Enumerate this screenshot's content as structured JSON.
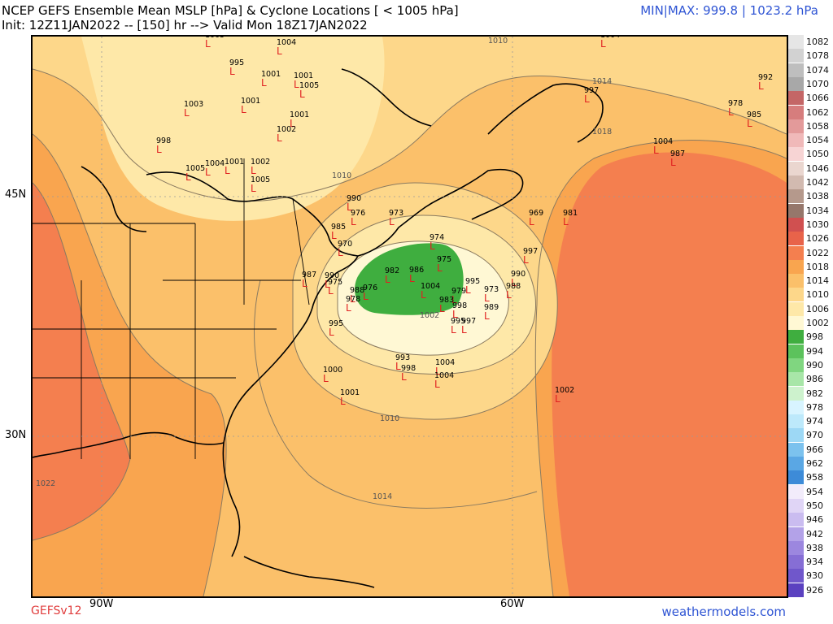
{
  "header": {
    "title_line1": "NCEP GEFS Ensemble Mean MSLP [hPa] & Cyclone Locations [ < 1005 hPa]",
    "title_line2": "Init: 12Z11JAN2022 -- [150] hr --> Valid Mon 18Z17JAN2022",
    "minmax": "MIN|MAX: 999.8 | 1023.2 hPa"
  },
  "footer": {
    "model": "GEFSv12",
    "site": "weathermodels.com"
  },
  "axes": {
    "lat_labels": [
      "45N",
      "30N"
    ],
    "lon_labels": [
      "90W",
      "60W"
    ]
  },
  "isobar_labels": [
    "1010",
    "1014",
    "1018",
    "1010",
    "1002",
    "1010",
    "1014",
    "1022"
  ],
  "colorbar": {
    "levels": [
      {
        "v": "1082",
        "c": "#e6e6e6"
      },
      {
        "v": "1078",
        "c": "#d2d2d2"
      },
      {
        "v": "1074",
        "c": "#bebebe"
      },
      {
        "v": "1070",
        "c": "#a8a8a8"
      },
      {
        "v": "1066",
        "c": "#c46666"
      },
      {
        "v": "1062",
        "c": "#d67d7d"
      },
      {
        "v": "1058",
        "c": "#e39a9a"
      },
      {
        "v": "1054",
        "c": "#f0b9b9"
      },
      {
        "v": "1050",
        "c": "#f7d4d4"
      },
      {
        "v": "1046",
        "c": "#ead6cf"
      },
      {
        "v": "1042",
        "c": "#d2bab0"
      },
      {
        "v": "1038",
        "c": "#b5998c"
      },
      {
        "v": "1034",
        "c": "#96776b"
      },
      {
        "v": "1030",
        "c": "#d05050"
      },
      {
        "v": "1026",
        "c": "#e8634a"
      },
      {
        "v": "1022",
        "c": "#f47f4f"
      },
      {
        "v": "1018",
        "c": "#f9a54f"
      },
      {
        "v": "1014",
        "c": "#fbc06a"
      },
      {
        "v": "1010",
        "c": "#fdd78a"
      },
      {
        "v": "1006",
        "c": "#fee8a8"
      },
      {
        "v": "1002",
        "c": "#fff8d4"
      },
      {
        "v": "998",
        "c": "#3fae3f"
      },
      {
        "v": "994",
        "c": "#5cc25c"
      },
      {
        "v": "990",
        "c": "#80d680"
      },
      {
        "v": "986",
        "c": "#a8e6a8"
      },
      {
        "v": "982",
        "c": "#cdf2cd"
      },
      {
        "v": "978",
        "c": "#d8f4ff"
      },
      {
        "v": "974",
        "c": "#bde9fb"
      },
      {
        "v": "970",
        "c": "#9dd8f5"
      },
      {
        "v": "966",
        "c": "#7cc2ee"
      },
      {
        "v": "962",
        "c": "#5aa7e4"
      },
      {
        "v": "958",
        "c": "#3d8bd8"
      },
      {
        "v": "954",
        "c": "#f2ecfb"
      },
      {
        "v": "950",
        "c": "#e0d5f6"
      },
      {
        "v": "946",
        "c": "#cabcf0"
      },
      {
        "v": "942",
        "c": "#b3a2e8"
      },
      {
        "v": "938",
        "c": "#9c87df"
      },
      {
        "v": "934",
        "c": "#866ed5"
      },
      {
        "v": "930",
        "c": "#7057cb"
      },
      {
        "v": "926",
        "c": "#5b41c0"
      }
    ]
  },
  "cyclones": [
    {
      "v": "1005"
    },
    {
      "v": "1004"
    },
    {
      "v": "995"
    },
    {
      "v": "1001"
    },
    {
      "v": "1001"
    },
    {
      "v": "1005"
    },
    {
      "v": "1003"
    },
    {
      "v": "1001"
    },
    {
      "v": "1001"
    },
    {
      "v": "1002"
    },
    {
      "v": "998"
    },
    {
      "v": "1004"
    },
    {
      "v": "1005"
    },
    {
      "v": "1001"
    },
    {
      "v": "1002"
    },
    {
      "v": "1005"
    },
    {
      "v": "1004"
    },
    {
      "v": "997"
    },
    {
      "v": "992"
    },
    {
      "v": "978"
    },
    {
      "v": "985"
    },
    {
      "v": "1004"
    },
    {
      "v": "987"
    },
    {
      "v": "990"
    },
    {
      "v": "976"
    },
    {
      "v": "973"
    },
    {
      "v": "969"
    },
    {
      "v": "981"
    },
    {
      "v": "985"
    },
    {
      "v": "970"
    },
    {
      "v": "974"
    },
    {
      "v": "997"
    },
    {
      "v": "975"
    },
    {
      "v": "982"
    },
    {
      "v": "986"
    },
    {
      "v": "987"
    },
    {
      "v": "990"
    },
    {
      "v": "975"
    },
    {
      "v": "988"
    },
    {
      "v": "976"
    },
    {
      "v": "978"
    },
    {
      "v": "1004"
    },
    {
      "v": "995"
    },
    {
      "v": "979"
    },
    {
      "v": "983"
    },
    {
      "v": "973"
    },
    {
      "v": "990"
    },
    {
      "v": "988"
    },
    {
      "v": "998"
    },
    {
      "v": "989"
    },
    {
      "v": "995"
    },
    {
      "v": "997"
    },
    {
      "v": "995"
    },
    {
      "v": "993"
    },
    {
      "v": "998"
    },
    {
      "v": "1004"
    },
    {
      "v": "1000"
    },
    {
      "v": "1004"
    },
    {
      "v": "1001"
    },
    {
      "v": "1002"
    }
  ]
}
